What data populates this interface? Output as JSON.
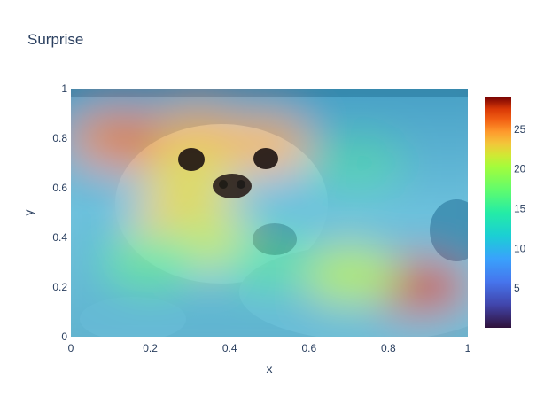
{
  "chart_data": {
    "type": "heatmap",
    "title": "Surprise",
    "xlabel": "x",
    "ylabel": "y",
    "xlim": [
      0,
      1
    ],
    "ylim": [
      0,
      1
    ],
    "x_ticks": [
      "0",
      "0.2",
      "0.4",
      "0.6",
      "0.8",
      "1"
    ],
    "y_ticks": [
      "0",
      "0.2",
      "0.4",
      "0.6",
      "0.8",
      "1"
    ],
    "colorbar": {
      "min": 0,
      "max": 29,
      "ticks": [
        "5",
        "10",
        "15",
        "20",
        "25"
      ],
      "colorscale": "Turbo"
    },
    "background": "photograph of a harp seal pup overlaid by the heatmap",
    "hotspots": [
      {
        "x": 0.12,
        "y": 0.8,
        "value": 25
      },
      {
        "x": 0.22,
        "y": 0.78,
        "value": 26
      },
      {
        "x": 0.32,
        "y": 0.82,
        "value": 24
      },
      {
        "x": 0.48,
        "y": 0.78,
        "value": 24
      },
      {
        "x": 0.3,
        "y": 0.62,
        "value": 22
      },
      {
        "x": 0.28,
        "y": 0.45,
        "value": 23
      },
      {
        "x": 0.35,
        "y": 0.38,
        "value": 21
      },
      {
        "x": 0.88,
        "y": 0.2,
        "value": 28
      },
      {
        "x": 0.7,
        "y": 0.25,
        "value": 20
      },
      {
        "x": 0.2,
        "y": 0.3,
        "value": 15
      },
      {
        "x": 0.5,
        "y": 0.3,
        "value": 14
      },
      {
        "x": 0.72,
        "y": 0.7,
        "value": 13
      }
    ],
    "base_value": 10
  }
}
